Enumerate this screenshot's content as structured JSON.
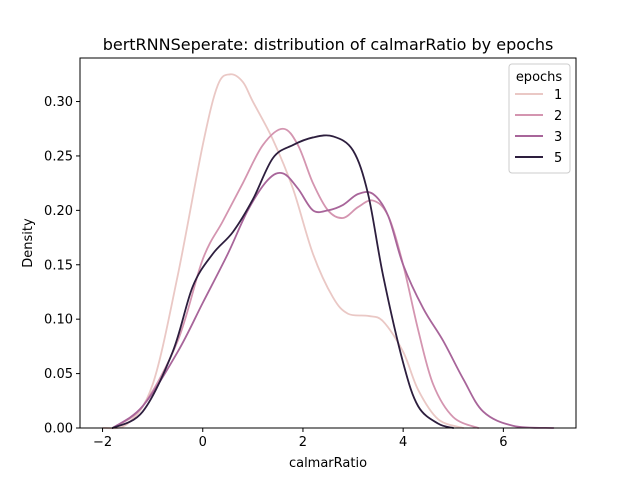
{
  "chart_data": {
    "type": "line",
    "title": "bertRNNSeperate: distribution of calmarRatio by epochs",
    "xlabel": "calmarRatio",
    "ylabel": "Density",
    "xlim": [
      -2.45,
      7.45
    ],
    "ylim": [
      0.0,
      0.34
    ],
    "xticks": [
      -2,
      0,
      2,
      4,
      6
    ],
    "xtick_labels": [
      "−2",
      "0",
      "2",
      "4",
      "6"
    ],
    "yticks": [
      0.0,
      0.05,
      0.1,
      0.15,
      0.2,
      0.25,
      0.3
    ],
    "ytick_labels": [
      "0.00",
      "0.05",
      "0.10",
      "0.15",
      "0.20",
      "0.25",
      "0.30"
    ],
    "grid": false,
    "legend": {
      "title": "epochs",
      "placement": "top-right"
    },
    "series": [
      {
        "name": "1",
        "color": "#eac8c5",
        "points": [
          [
            -2.0,
            0.0
          ],
          [
            -1.5,
            0.004
          ],
          [
            -1.0,
            0.04
          ],
          [
            -0.5,
            0.14
          ],
          [
            0.0,
            0.26
          ],
          [
            0.3,
            0.315
          ],
          [
            0.55,
            0.325
          ],
          [
            0.8,
            0.318
          ],
          [
            1.0,
            0.3
          ],
          [
            1.4,
            0.265
          ],
          [
            1.8,
            0.22
          ],
          [
            2.2,
            0.16
          ],
          [
            2.6,
            0.12
          ],
          [
            2.9,
            0.105
          ],
          [
            3.3,
            0.103
          ],
          [
            3.6,
            0.098
          ],
          [
            4.0,
            0.07
          ],
          [
            4.3,
            0.035
          ],
          [
            4.7,
            0.008
          ],
          [
            5.2,
            0.0
          ]
        ]
      },
      {
        "name": "2",
        "color": "#d495b0",
        "points": [
          [
            -1.8,
            0.0
          ],
          [
            -1.2,
            0.02
          ],
          [
            -0.5,
            0.08
          ],
          [
            0.0,
            0.155
          ],
          [
            0.4,
            0.19
          ],
          [
            0.8,
            0.225
          ],
          [
            1.2,
            0.26
          ],
          [
            1.6,
            0.275
          ],
          [
            1.9,
            0.26
          ],
          [
            2.2,
            0.225
          ],
          [
            2.5,
            0.2
          ],
          [
            2.8,
            0.193
          ],
          [
            3.1,
            0.203
          ],
          [
            3.4,
            0.209
          ],
          [
            3.7,
            0.195
          ],
          [
            4.0,
            0.15
          ],
          [
            4.3,
            0.09
          ],
          [
            4.6,
            0.04
          ],
          [
            5.0,
            0.01
          ],
          [
            5.5,
            0.0
          ]
        ]
      },
      {
        "name": "3",
        "color": "#a8659a",
        "points": [
          [
            -1.8,
            0.0
          ],
          [
            -1.2,
            0.02
          ],
          [
            -0.5,
            0.07
          ],
          [
            0.0,
            0.115
          ],
          [
            0.5,
            0.16
          ],
          [
            0.9,
            0.2
          ],
          [
            1.3,
            0.228
          ],
          [
            1.6,
            0.234
          ],
          [
            1.9,
            0.22
          ],
          [
            2.2,
            0.2
          ],
          [
            2.5,
            0.2
          ],
          [
            2.8,
            0.205
          ],
          [
            3.1,
            0.215
          ],
          [
            3.4,
            0.215
          ],
          [
            3.7,
            0.195
          ],
          [
            4.0,
            0.15
          ],
          [
            4.4,
            0.11
          ],
          [
            4.8,
            0.08
          ],
          [
            5.2,
            0.045
          ],
          [
            5.6,
            0.015
          ],
          [
            6.2,
            0.002
          ],
          [
            7.0,
            0.0
          ]
        ]
      },
      {
        "name": "5",
        "color": "#2d1e3e",
        "points": [
          [
            -1.8,
            0.0
          ],
          [
            -1.2,
            0.015
          ],
          [
            -0.6,
            0.07
          ],
          [
            -0.2,
            0.13
          ],
          [
            0.2,
            0.16
          ],
          [
            0.6,
            0.18
          ],
          [
            1.0,
            0.21
          ],
          [
            1.4,
            0.248
          ],
          [
            1.8,
            0.26
          ],
          [
            2.2,
            0.267
          ],
          [
            2.6,
            0.268
          ],
          [
            3.0,
            0.255
          ],
          [
            3.3,
            0.215
          ],
          [
            3.6,
            0.14
          ],
          [
            4.0,
            0.06
          ],
          [
            4.3,
            0.02
          ],
          [
            4.7,
            0.004
          ],
          [
            5.0,
            0.0
          ]
        ]
      }
    ]
  }
}
